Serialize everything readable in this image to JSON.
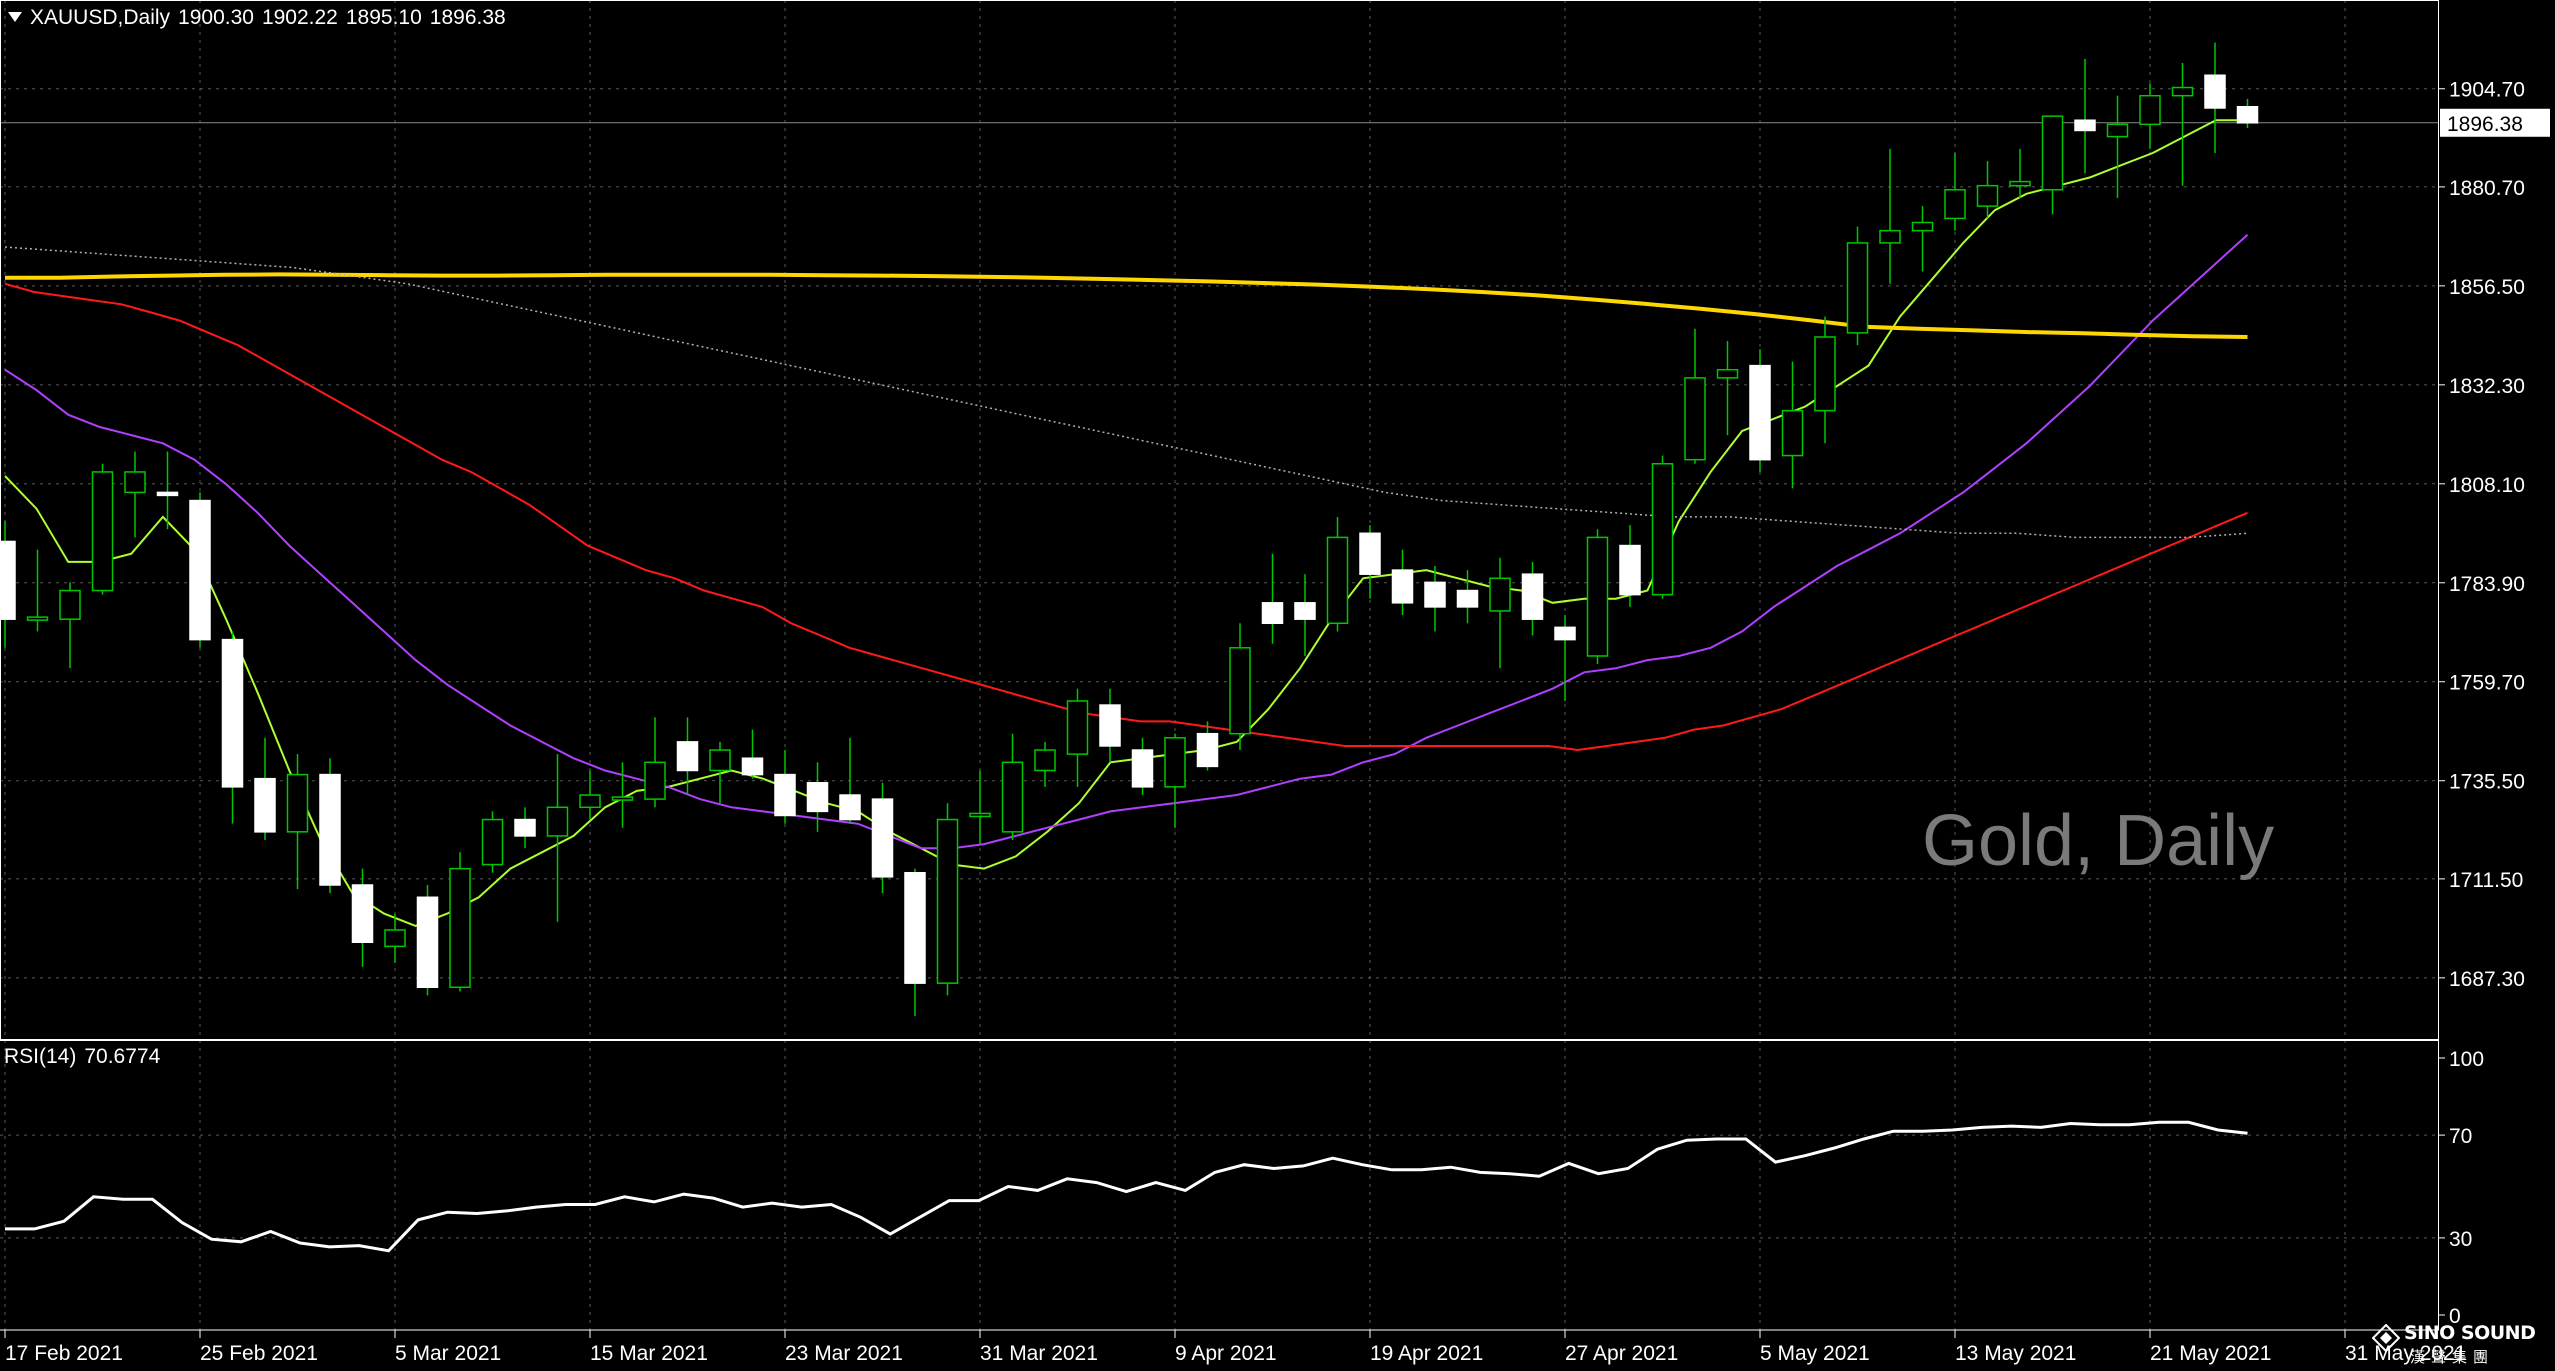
{
  "header": {
    "symbol": "XAUUSD,Daily",
    "open": "1900.30",
    "high": "1902.22",
    "low": "1895.10",
    "close": "1896.38"
  },
  "rsi": {
    "label": "RSI(14)",
    "value": "70.6774"
  },
  "watermark": "Gold, Daily",
  "logo": {
    "name_en": "SINO SOUND",
    "name_cn": "漢聲集團"
  },
  "colors": {
    "background": "#000000",
    "grid": "#7f7f7f",
    "candle_up_body": "#000000",
    "candle_up_wick": "#00c800",
    "candle_down_body": "#ffffff",
    "ma_short": "#adff2f",
    "ma_mid": "#b040ff",
    "ma_red": "#ff1a1a",
    "ma_yellow": "#ffd700",
    "ma_dotted": "#b0b0b0",
    "rsi_line": "#ffffff"
  },
  "chart_data": [
    {
      "type": "candlestick",
      "title": "XAUUSD,Daily",
      "x_tick_labels": [
        "17 Feb 2021",
        "25 Feb 2021",
        "5 Mar 2021",
        "15 Mar 2021",
        "23 Mar 2021",
        "31 Mar 2021",
        "9 Apr 2021",
        "19 Apr 2021",
        "27 Apr 2021",
        "5 May 2021",
        "13 May 2021",
        "21 May 2021",
        "31 May 2021"
      ],
      "x_tick_index": [
        0,
        6,
        12,
        18,
        24,
        30,
        36,
        42,
        48,
        54,
        60,
        66,
        72
      ],
      "y_tick_labels": [
        "1904.70",
        "1880.70",
        "1856.50",
        "1832.30",
        "1808.10",
        "1783.90",
        "1759.70",
        "1735.50",
        "1711.50",
        "1687.30"
      ],
      "y_ticks": [
        1904.7,
        1880.7,
        1856.5,
        1832.3,
        1808.1,
        1783.9,
        1759.7,
        1735.5,
        1711.5,
        1687.3
      ],
      "ylim": [
        1672.1,
        1926.4
      ],
      "current_price_label": "1896.38",
      "current_price": 1896.38,
      "grid": true,
      "candles": [
        {
          "o": 1794.0,
          "h": 1799.0,
          "l": 1768.0,
          "c": 1775.0
        },
        {
          "o": 1775.0,
          "h": 1792.0,
          "l": 1772.0,
          "c": 1775.5
        },
        {
          "o": 1775.0,
          "h": 1784.0,
          "l": 1763.0,
          "c": 1782.0
        },
        {
          "o": 1782.0,
          "h": 1813.0,
          "l": 1781.0,
          "c": 1811.0
        },
        {
          "o": 1806.0,
          "h": 1816.0,
          "l": 1795.0,
          "c": 1811.0
        },
        {
          "o": 1806.0,
          "h": 1816.0,
          "l": 1797.0,
          "c": 1805.5
        },
        {
          "o": 1804.0,
          "h": 1806.0,
          "l": 1768.0,
          "c": 1770.0
        },
        {
          "o": 1770.0,
          "h": 1772.0,
          "l": 1725.0,
          "c": 1734.0
        },
        {
          "o": 1736.0,
          "h": 1746.0,
          "l": 1721.0,
          "c": 1723.0
        },
        {
          "o": 1723.0,
          "h": 1742.0,
          "l": 1709.0,
          "c": 1737.0
        },
        {
          "o": 1737.0,
          "h": 1741.0,
          "l": 1708.0,
          "c": 1710.0
        },
        {
          "o": 1710.0,
          "h": 1714.0,
          "l": 1690.0,
          "c": 1696.0
        },
        {
          "o": 1695.0,
          "h": 1703.0,
          "l": 1691.0,
          "c": 1699.0
        },
        {
          "o": 1707.0,
          "h": 1710.0,
          "l": 1683.0,
          "c": 1685.0
        },
        {
          "o": 1685.0,
          "h": 1718.0,
          "l": 1684.0,
          "c": 1714.0
        },
        {
          "o": 1715.0,
          "h": 1728.0,
          "l": 1713.0,
          "c": 1726.0
        },
        {
          "o": 1726.0,
          "h": 1729.0,
          "l": 1719.0,
          "c": 1722.0
        },
        {
          "o": 1722.0,
          "h": 1742.0,
          "l": 1701.0,
          "c": 1729.0
        },
        {
          "o": 1729.0,
          "h": 1738.0,
          "l": 1726.0,
          "c": 1732.0
        },
        {
          "o": 1731.0,
          "h": 1740.0,
          "l": 1724.0,
          "c": 1731.5
        },
        {
          "o": 1731.0,
          "h": 1751.0,
          "l": 1729.0,
          "c": 1740.0
        },
        {
          "o": 1745.0,
          "h": 1751.0,
          "l": 1732.0,
          "c": 1738.0
        },
        {
          "o": 1738.0,
          "h": 1745.0,
          "l": 1730.0,
          "c": 1743.0
        },
        {
          "o": 1741.0,
          "h": 1748.0,
          "l": 1736.0,
          "c": 1737.0
        },
        {
          "o": 1737.0,
          "h": 1743.0,
          "l": 1725.0,
          "c": 1727.0
        },
        {
          "o": 1735.0,
          "h": 1740.0,
          "l": 1723.0,
          "c": 1728.0
        },
        {
          "o": 1732.0,
          "h": 1746.0,
          "l": 1725.0,
          "c": 1726.0
        },
        {
          "o": 1731.0,
          "h": 1735.0,
          "l": 1708.0,
          "c": 1712.0
        },
        {
          "o": 1713.0,
          "h": 1714.0,
          "l": 1678.0,
          "c": 1686.0
        },
        {
          "o": 1686.0,
          "h": 1730.0,
          "l": 1683.0,
          "c": 1726.0
        },
        {
          "o": 1727.0,
          "h": 1738.0,
          "l": 1720.0,
          "c": 1727.5
        },
        {
          "o": 1723.0,
          "h": 1747.0,
          "l": 1721.0,
          "c": 1740.0
        },
        {
          "o": 1738.0,
          "h": 1745.0,
          "l": 1734.0,
          "c": 1743.0
        },
        {
          "o": 1742.0,
          "h": 1758.0,
          "l": 1734.0,
          "c": 1755.0
        },
        {
          "o": 1754.0,
          "h": 1758.0,
          "l": 1740.0,
          "c": 1744.0
        },
        {
          "o": 1743.0,
          "h": 1746.0,
          "l": 1732.0,
          "c": 1734.0
        },
        {
          "o": 1734.0,
          "h": 1747.0,
          "l": 1724.0,
          "c": 1746.0
        },
        {
          "o": 1747.0,
          "h": 1750.0,
          "l": 1738.0,
          "c": 1739.0
        },
        {
          "o": 1747.0,
          "h": 1774.0,
          "l": 1743.0,
          "c": 1768.0
        },
        {
          "o": 1779.0,
          "h": 1791.0,
          "l": 1769.0,
          "c": 1774.0
        },
        {
          "o": 1779.0,
          "h": 1786.0,
          "l": 1766.0,
          "c": 1775.0
        },
        {
          "o": 1774.0,
          "h": 1800.0,
          "l": 1772.0,
          "c": 1795.0
        },
        {
          "o": 1796.0,
          "h": 1798.0,
          "l": 1780.0,
          "c": 1786.0
        },
        {
          "o": 1787.0,
          "h": 1792.0,
          "l": 1776.0,
          "c": 1779.0
        },
        {
          "o": 1784.0,
          "h": 1788.0,
          "l": 1772.0,
          "c": 1778.0
        },
        {
          "o": 1782.0,
          "h": 1787.0,
          "l": 1774.0,
          "c": 1778.0
        },
        {
          "o": 1777.0,
          "h": 1790.0,
          "l": 1763.0,
          "c": 1785.0
        },
        {
          "o": 1786.0,
          "h": 1789.0,
          "l": 1771.0,
          "c": 1775.0
        },
        {
          "o": 1773.0,
          "h": 1776.0,
          "l": 1755.0,
          "c": 1770.0
        },
        {
          "o": 1766.0,
          "h": 1797.0,
          "l": 1764.0,
          "c": 1795.0
        },
        {
          "o": 1793.0,
          "h": 1798.0,
          "l": 1778.0,
          "c": 1781.0
        },
        {
          "o": 1781.0,
          "h": 1815.0,
          "l": 1780.0,
          "c": 1813.0
        },
        {
          "o": 1814.0,
          "h": 1846.0,
          "l": 1813.0,
          "c": 1834.0
        },
        {
          "o": 1834.0,
          "h": 1843.0,
          "l": 1820.0,
          "c": 1836.0
        },
        {
          "o": 1837.0,
          "h": 1841.0,
          "l": 1811.0,
          "c": 1814.0
        },
        {
          "o": 1815.0,
          "h": 1838.0,
          "l": 1807.0,
          "c": 1826.0
        },
        {
          "o": 1826.0,
          "h": 1849.0,
          "l": 1818.0,
          "c": 1844.0
        },
        {
          "o": 1845.0,
          "h": 1871.0,
          "l": 1842.0,
          "c": 1867.0
        },
        {
          "o": 1867.0,
          "h": 1890.0,
          "l": 1857.0,
          "c": 1870.0
        },
        {
          "o": 1870.0,
          "h": 1876.0,
          "l": 1860.0,
          "c": 1872.0
        },
        {
          "o": 1873.0,
          "h": 1889.0,
          "l": 1870.0,
          "c": 1880.0
        },
        {
          "o": 1876.0,
          "h": 1887.0,
          "l": 1873.0,
          "c": 1881.0
        },
        {
          "o": 1881.0,
          "h": 1890.0,
          "l": 1878.0,
          "c": 1882.0
        },
        {
          "o": 1880.0,
          "h": 1898.0,
          "l": 1874.0,
          "c": 1898.0
        },
        {
          "o": 1897.0,
          "h": 1912.0,
          "l": 1884.0,
          "c": 1894.5
        },
        {
          "o": 1893.0,
          "h": 1903.0,
          "l": 1878.0,
          "c": 1896.0
        },
        {
          "o": 1896.0,
          "h": 1906.0,
          "l": 1890.0,
          "c": 1903.0
        },
        {
          "o": 1903.0,
          "h": 1911.0,
          "l": 1881.0,
          "c": 1905.0
        },
        {
          "o": 1908.0,
          "h": 1916.0,
          "l": 1889.0,
          "c": 1900.0
        },
        {
          "o": 1900.3,
          "h": 1902.22,
          "l": 1895.1,
          "c": 1896.38
        }
      ],
      "moving_averages": [
        {
          "color_key": "ma_short",
          "values": [
            1810,
            1802,
            1789,
            1789,
            1791,
            1800,
            1792,
            1775,
            1757,
            1738,
            1721,
            1708,
            1703,
            1700,
            1703,
            1707,
            1714,
            1718,
            1722,
            1729,
            1733,
            1734,
            1736,
            1738,
            1736,
            1733,
            1730,
            1728,
            1723,
            1719,
            1715,
            1714,
            1717,
            1723,
            1730,
            1740,
            1741,
            1742,
            1743,
            1745,
            1753,
            1763,
            1775,
            1785,
            1786,
            1787,
            1785,
            1783,
            1782,
            1779,
            1780,
            1780,
            1782,
            1799,
            1811,
            1821,
            1824,
            1827,
            1832,
            1837,
            1849,
            1858,
            1867,
            1875,
            1879,
            1881,
            1883,
            1886,
            1889,
            1893,
            1897,
            1897
          ]
        },
        {
          "color_key": "ma_mid",
          "values": [
            1836,
            1831,
            1825,
            1822,
            1820,
            1818,
            1814,
            1808,
            1801,
            1793,
            1786,
            1779,
            1772,
            1765,
            1759,
            1754,
            1749,
            1745,
            1741,
            1738,
            1736,
            1734,
            1731,
            1729,
            1728,
            1727,
            1726,
            1725,
            1722,
            1719,
            1719,
            1720,
            1722,
            1724,
            1726,
            1728,
            1729,
            1730,
            1731,
            1732,
            1734,
            1736,
            1737,
            1740,
            1742,
            1746,
            1749,
            1752,
            1755,
            1758,
            1762,
            1763,
            1765,
            1766,
            1768,
            1772,
            1778,
            1783,
            1788,
            1792,
            1796,
            1801,
            1806,
            1812,
            1818,
            1825,
            1832,
            1840,
            1848,
            1855,
            1862,
            1869
          ]
        },
        {
          "color_key": "ma_red",
          "values": [
            1857,
            1855,
            1854,
            1853,
            1852,
            1850,
            1848,
            1845,
            1842,
            1838,
            1834,
            1830,
            1826,
            1822,
            1818,
            1814,
            1811,
            1807,
            1803,
            1798,
            1793,
            1790,
            1787,
            1785,
            1782,
            1780,
            1778,
            1774,
            1771,
            1768,
            1766,
            1764,
            1762,
            1760,
            1758,
            1756,
            1754,
            1752,
            1751,
            1750,
            1750,
            1749,
            1748,
            1747,
            1746,
            1745,
            1744,
            1744,
            1744,
            1744,
            1744,
            1744,
            1744,
            1744,
            1743,
            1744,
            1745,
            1746,
            1748,
            1749,
            1751,
            1753,
            1756,
            1759,
            1762,
            1765,
            1768,
            1771,
            1774,
            1777,
            1780,
            1783,
            1786,
            1789,
            1792,
            1795,
            1798,
            1801
          ]
        },
        {
          "color_key": "ma_yellow",
          "values": [
            1858.5,
            1858.5,
            1858.8,
            1859.0,
            1859.2,
            1859.3,
            1859.2,
            1859.1,
            1859.0,
            1859.0,
            1859.1,
            1859.2,
            1859.2,
            1859.2,
            1859.2,
            1859.1,
            1859.0,
            1858.9,
            1858.7,
            1858.5,
            1858.2,
            1857.9,
            1857.6,
            1857.2,
            1856.8,
            1856.3,
            1855.7,
            1855.0,
            1854.2,
            1853.2,
            1852.1,
            1850.9,
            1849.6,
            1848.1,
            1846.5,
            1846.0,
            1845.6,
            1845.2,
            1844.9,
            1844.5,
            1844.2,
            1844.0
          ]
        },
        {
          "color_key": "ma_dotted",
          "values": [
            1866,
            1865,
            1864,
            1863,
            1862,
            1861,
            1859,
            1857,
            1854,
            1851,
            1848,
            1845,
            1842,
            1839,
            1836,
            1833,
            1830,
            1827,
            1824,
            1821,
            1818,
            1815,
            1812,
            1809,
            1806,
            1804,
            1803,
            1802,
            1801,
            1800,
            1800,
            1799,
            1798,
            1797,
            1796,
            1796,
            1795,
            1795,
            1795,
            1796
          ]
        }
      ]
    },
    {
      "type": "line",
      "title": "RSI(14) 70.6774",
      "y_tick_labels": [
        "100",
        "70",
        "30",
        "0"
      ],
      "y_ticks": [
        100,
        70,
        30,
        0
      ],
      "ylim": [
        0,
        100
      ],
      "series": [
        {
          "values": [
            33.5,
            33.5,
            36.5,
            46,
            45,
            45,
            36,
            29.5,
            28.5,
            32.5,
            28,
            26.5,
            27,
            25,
            37,
            40,
            39.5,
            40.5,
            42,
            43,
            43,
            46,
            44,
            47,
            45.5,
            42,
            43.5,
            42,
            43,
            38,
            31.5,
            38,
            44.5,
            44.5,
            50,
            48.5,
            53,
            51.5,
            48,
            51.5,
            48.5,
            55.5,
            58.5,
            57,
            58,
            61,
            58.5,
            56.5,
            56.5,
            57.5,
            55.5,
            55,
            54,
            59,
            55,
            57,
            64.5,
            68,
            68.5,
            68.5,
            59.5,
            62,
            65,
            68.5,
            71.5,
            71.5,
            72,
            73,
            73.5,
            73,
            74.5,
            74,
            74,
            75,
            75,
            72,
            70.7
          ]
        }
      ]
    }
  ]
}
